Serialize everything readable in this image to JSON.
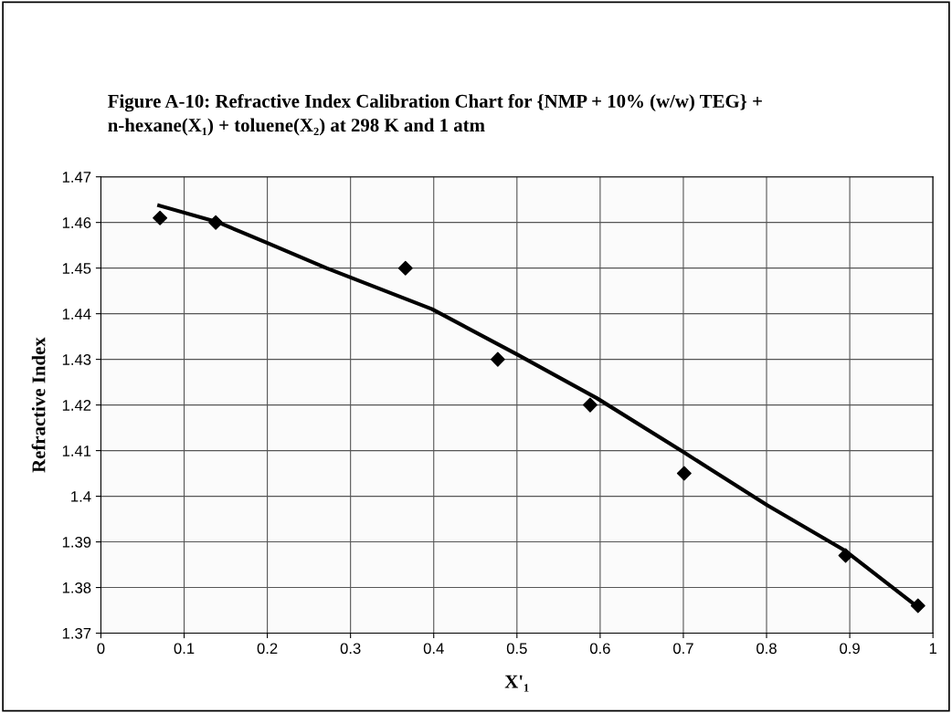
{
  "chart_data": {
    "type": "scatter",
    "title": "Figure A-10: Refractive Index Calibration Chart for {NMP + 10% (w/w) TEG} +\nn-hexane(X₁) + toluene(X₂) at 298 K and 1 atm",
    "xlabel": "X'₁",
    "ylabel": "Refractive Index",
    "xlim": [
      0,
      1
    ],
    "ylim": [
      1.37,
      1.47
    ],
    "xticks": [
      0,
      0.1,
      0.2,
      0.3,
      0.4,
      0.5,
      0.6,
      0.7,
      0.8,
      0.9,
      1
    ],
    "yticks": [
      1.37,
      1.38,
      1.39,
      1.4,
      1.41,
      1.42,
      1.43,
      1.44,
      1.45,
      1.46,
      1.47
    ],
    "grid": true,
    "legend": false,
    "series": [
      {
        "color": "#000000",
        "marker": "diamond",
        "x": [
          0.071,
          0.138,
          0.366,
          0.477,
          0.588,
          0.701,
          0.895,
          0.982
        ],
        "values": [
          1.461,
          1.46,
          1.45,
          1.43,
          1.42,
          1.405,
          1.387,
          1.376
        ]
      },
      {
        "type": "line",
        "color": "#000000",
        "marker": "none",
        "line_style": "solid",
        "x": [
          0.07,
          0.14,
          0.2,
          0.271,
          0.398,
          0.5,
          0.596,
          0.699,
          0.801,
          0.895,
          0.982
        ],
        "values": [
          1.4637,
          1.4601,
          1.4555,
          1.45,
          1.441,
          1.4311,
          1.4215,
          1.4098,
          1.398,
          1.388,
          1.3757
        ]
      }
    ]
  }
}
